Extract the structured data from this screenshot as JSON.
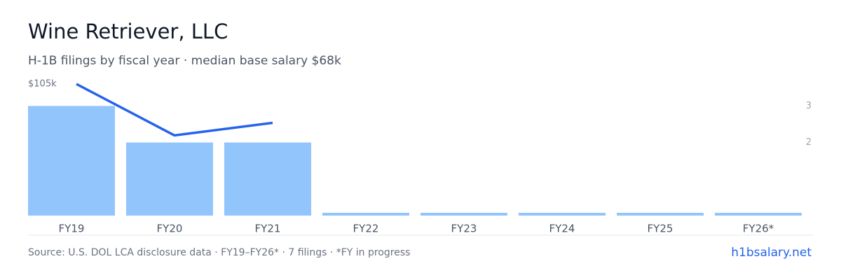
{
  "chart_data": {
    "type": "bar",
    "title": "Wine Retriever,  LLC",
    "subtitle": "H-1B filings by fiscal year · median base salary $68k",
    "categories": [
      "FY19",
      "FY20",
      "FY21",
      "FY22",
      "FY23",
      "FY24",
      "FY25",
      "FY26*"
    ],
    "series": [
      {
        "type": "bar",
        "color": "#93c5fd",
        "axis": "y2",
        "values": [
          3,
          2,
          2,
          0,
          0,
          0,
          0,
          0
        ]
      },
      {
        "type": "line",
        "color": "#2563eb",
        "values": [
          105000,
          64000,
          74000,
          null,
          null,
          null,
          null,
          null
        ]
      }
    ],
    "ylim": [
      0,
      105000
    ],
    "yticks": [
      {
        "value": 105000,
        "label": "$105k"
      }
    ],
    "y2lim": [
      0,
      3.6
    ],
    "y2ticks": [
      2,
      3
    ],
    "footer": "Source: U.S. DOL LCA disclosure data · FY19–FY26* · 7 filings · *FY in progress",
    "link": "h1bsalary.net"
  }
}
